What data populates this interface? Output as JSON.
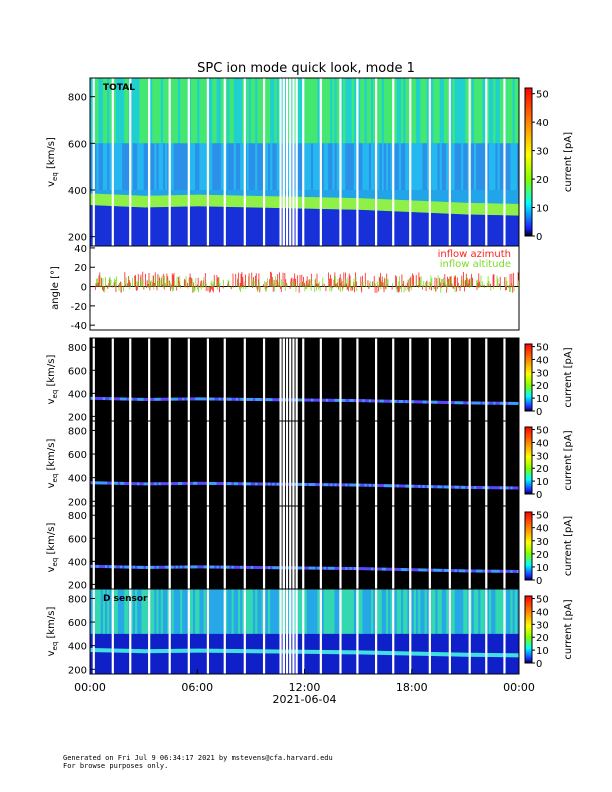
{
  "title": "SPC ion mode quick look, mode 1",
  "footer": {
    "line1": "Generated on Fri Jul  9 06:34:17 2021 by mstevens@cfa.harvard.edu",
    "line2": "For browse purposes only."
  },
  "colors": {
    "azimuth": "#ff2020",
    "elevation": "#7cdc28",
    "colorbar": [
      "#000000",
      "#1a1aff",
      "#00ffff",
      "#7fff00",
      "#ffff00",
      "#ff0000"
    ]
  },
  "chart_data": [
    {
      "type": "heatmap",
      "panel": "total",
      "label": "TOTAL",
      "ylabel": "v",
      "ylabel_sub": "eq",
      "ylabel_unit": "[km/s]",
      "yticks": [
        "200",
        "400",
        "600",
        "800"
      ],
      "ylim": [
        160,
        880
      ],
      "colorbar_label": "current [pA]",
      "colorbar_ticks": [
        "0",
        "10",
        "20",
        "30",
        "40",
        "50"
      ],
      "clim": [
        0,
        52
      ],
      "background": "saturated",
      "speed_track": {
        "x_hours": [
          0,
          3,
          6,
          9,
          12,
          15,
          18,
          21,
          24
        ],
        "v": [
          355,
          345,
          350,
          345,
          340,
          335,
          325,
          315,
          310
        ]
      }
    },
    {
      "type": "line",
      "panel": "angle",
      "ylabel": "angle [°]",
      "yticks": [
        "-40",
        "-20",
        "0",
        "20",
        "40"
      ],
      "ylim": [
        -45,
        42
      ],
      "legend": [
        "inflow azimuth",
        "inflow altitude"
      ],
      "legend_position": "top-right"
    },
    {
      "type": "heatmap",
      "panel": "sensor-A",
      "label": "",
      "ylabel": "v",
      "ylabel_sub": "eq",
      "ylabel_unit": "[km/s]",
      "yticks": [
        "200",
        "400",
        "600",
        "800"
      ],
      "ylim": [
        160,
        880
      ],
      "colorbar_label": "current [pA]",
      "colorbar_ticks": [
        "0",
        "10",
        "20",
        "30",
        "40",
        "50"
      ],
      "background": "dark",
      "speed_track": {
        "x_hours": [
          0,
          3,
          6,
          9,
          12,
          15,
          18,
          21,
          24
        ],
        "v": [
          355,
          345,
          350,
          345,
          340,
          335,
          325,
          315,
          310
        ]
      }
    },
    {
      "type": "heatmap",
      "panel": "sensor-B",
      "label": "",
      "ylabel": "v",
      "ylabel_sub": "eq",
      "ylabel_unit": "[km/s]",
      "yticks": [
        "200",
        "400",
        "600",
        "800"
      ],
      "ylim": [
        160,
        880
      ],
      "colorbar_label": "current [pA]",
      "colorbar_ticks": [
        "0",
        "10",
        "20",
        "30",
        "40",
        "50"
      ],
      "background": "dark",
      "speed_track": {
        "x_hours": [
          0,
          3,
          6,
          9,
          12,
          15,
          18,
          21,
          24
        ],
        "v": [
          355,
          345,
          350,
          345,
          340,
          335,
          325,
          315,
          310
        ]
      }
    },
    {
      "type": "heatmap",
      "panel": "sensor-C",
      "label": "",
      "ylabel": "v",
      "ylabel_sub": "eq",
      "ylabel_unit": "[km/s]",
      "yticks": [
        "200",
        "400",
        "600",
        "800"
      ],
      "ylim": [
        160,
        880
      ],
      "colorbar_label": "current [pA]",
      "colorbar_ticks": [
        "0",
        "10",
        "20",
        "30",
        "40",
        "50"
      ],
      "background": "dark",
      "speed_track": {
        "x_hours": [
          0,
          3,
          6,
          9,
          12,
          15,
          18,
          21,
          24
        ],
        "v": [
          355,
          345,
          350,
          345,
          340,
          335,
          325,
          315,
          310
        ]
      }
    },
    {
      "type": "heatmap",
      "panel": "sensor-D",
      "label": "D sensor",
      "ylabel": "v",
      "ylabel_sub": "eq",
      "ylabel_unit": "[km/s]",
      "yticks": [
        "200",
        "400",
        "600",
        "800"
      ],
      "ylim": [
        160,
        880
      ],
      "colorbar_label": "current [pA]",
      "colorbar_ticks": [
        "0",
        "10",
        "20",
        "30",
        "40",
        "50"
      ],
      "background": "blue",
      "speed_track": {
        "x_hours": [
          0,
          3,
          6,
          9,
          12,
          15,
          18,
          21,
          24
        ],
        "v": [
          355,
          345,
          350,
          345,
          340,
          335,
          325,
          315,
          310
        ]
      }
    }
  ],
  "x_axis": {
    "ticks": [
      "00:00",
      "06:00",
      "12:00",
      "18:00",
      "00:00"
    ],
    "tick_hours": [
      0,
      6,
      12,
      18,
      24
    ],
    "date": "2021-06-04"
  }
}
